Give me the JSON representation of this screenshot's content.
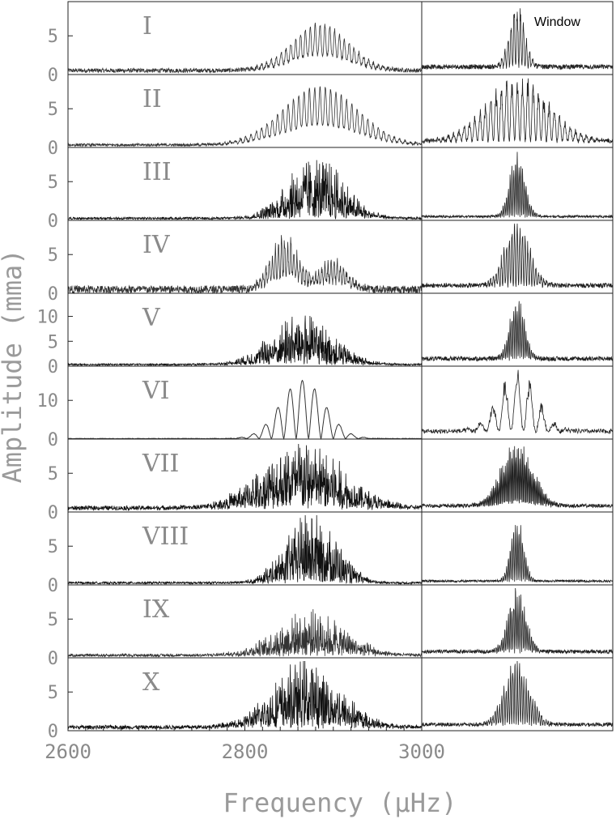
{
  "chart_data": {
    "type": "line",
    "title": "",
    "xlabel": "Frequency (μHz)",
    "ylabel": "Amplitude (mma)",
    "xlim": [
      2600,
      3000
    ],
    "x_ticks": [
      "2600",
      "2800",
      "3000"
    ],
    "window_label": "Window",
    "panels": [
      {
        "label": "I",
        "y_ticks": [
          "0",
          "5"
        ],
        "ylim": [
          0,
          9
        ],
        "spectrum": {
          "center": 2885,
          "width": 45,
          "peak": 6,
          "spacing": 5.5,
          "noise": 0.8,
          "style": "comb"
        },
        "window": {
          "peak": 8,
          "width": 12,
          "spacing": 3.5,
          "base": 1.0
        }
      },
      {
        "label": "II",
        "y_ticks": [
          "0",
          "5"
        ],
        "ylim": [
          0,
          9
        ],
        "spectrum": {
          "center": 2885,
          "width": 60,
          "peak": 7.5,
          "spacing": 6,
          "noise": 0.5,
          "style": "comb"
        },
        "window": {
          "peak": 8,
          "width": 50,
          "spacing": 6,
          "base": 0.8
        }
      },
      {
        "label": "III",
        "y_ticks": [
          "0",
          "5"
        ],
        "ylim": [
          0,
          9
        ],
        "spectrum": {
          "center": 2880,
          "width": 45,
          "peak": 7,
          "spacing": 2,
          "noise": 0.4,
          "style": "dense"
        },
        "window": {
          "peak": 8,
          "width": 12,
          "spacing": 2,
          "base": 0.5
        }
      },
      {
        "label": "IV",
        "y_ticks": [
          "0",
          "5"
        ],
        "ylim": [
          0,
          9
        ],
        "spectrum": {
          "center": 2845,
          "width": 22,
          "peak": 7,
          "spacing": 3.5,
          "noise": 1.0,
          "style": "double"
        },
        "window": {
          "peak": 8,
          "width": 20,
          "spacing": 3,
          "base": 1.0
        }
      },
      {
        "label": "V",
        "y_ticks": [
          "0",
          "5",
          "10"
        ],
        "ylim": [
          0,
          14
        ],
        "spectrum": {
          "center": 2865,
          "width": 50,
          "peak": 9,
          "spacing": 2,
          "noise": 0.5,
          "style": "dense"
        },
        "window": {
          "peak": 12,
          "width": 12,
          "spacing": 2,
          "base": 1.5
        }
      },
      {
        "label": "VI",
        "y_ticks": [
          "0",
          "10"
        ],
        "ylim": [
          0,
          18
        ],
        "spectrum": {
          "center": 2865,
          "width": 35,
          "peak": 15,
          "spacing": 14,
          "noise": 0.2,
          "style": "broad"
        },
        "window": {
          "peak": 15,
          "width": 30,
          "spacing": 14,
          "base": 2.0
        }
      },
      {
        "label": "VII",
        "y_ticks": [
          "0",
          "5"
        ],
        "ylim": [
          0,
          9
        ],
        "spectrum": {
          "center": 2865,
          "width": 65,
          "peak": 7.5,
          "spacing": 1.5,
          "noise": 0.8,
          "style": "dense"
        },
        "window": {
          "peak": 8,
          "width": 25,
          "spacing": 1.5,
          "base": 0.8
        }
      },
      {
        "label": "VIII",
        "y_ticks": [
          "0",
          "5"
        ],
        "ylim": [
          0,
          9
        ],
        "spectrum": {
          "center": 2875,
          "width": 40,
          "peak": 8,
          "spacing": 2,
          "noise": 0.4,
          "style": "dense"
        },
        "window": {
          "peak": 8,
          "width": 10,
          "spacing": 2,
          "base": 0.5
        }
      },
      {
        "label": "IX",
        "y_ticks": [
          "0",
          "5"
        ],
        "ylim": [
          0,
          9
        ],
        "spectrum": {
          "center": 2875,
          "width": 55,
          "peak": 5,
          "spacing": 2,
          "noise": 0.5,
          "style": "dense"
        },
        "window": {
          "peak": 8,
          "width": 14,
          "spacing": 2,
          "base": 0.8
        }
      },
      {
        "label": "X",
        "y_ticks": [
          "0",
          "5"
        ],
        "ylim": [
          0,
          9
        ],
        "spectrum": {
          "center": 2870,
          "width": 55,
          "peak": 7.5,
          "spacing": 2,
          "noise": 0.7,
          "style": "dense"
        },
        "window": {
          "peak": 8,
          "width": 20,
          "spacing": 2.5,
          "base": 0.8
        }
      }
    ]
  }
}
